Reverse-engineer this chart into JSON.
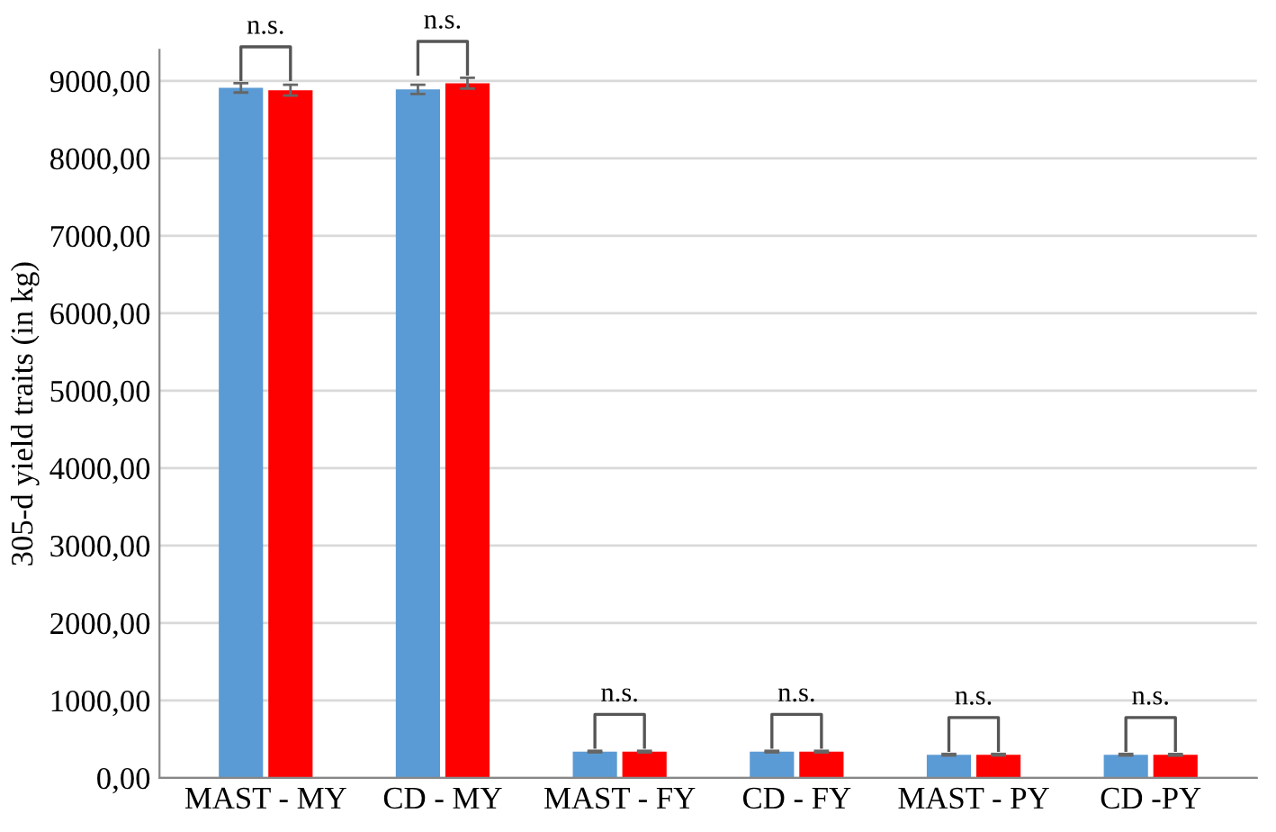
{
  "chart_data": {
    "type": "bar",
    "ylabel": "305-d yield traits (in kg)",
    "categories": [
      "MAST - MY",
      "CD - MY",
      "MAST - FY",
      "CD - FY",
      "MAST - PY",
      "CD -PY"
    ],
    "series": [
      {
        "color": "#5b9bd5",
        "values": [
          8910,
          8890,
          340,
          340,
          300,
          300
        ],
        "errors": [
          60,
          60,
          10,
          10,
          10,
          10
        ]
      },
      {
        "color": "#ff0000",
        "values": [
          8880,
          8970,
          340,
          340,
          300,
          300
        ],
        "errors": [
          70,
          70,
          10,
          10,
          10,
          10
        ]
      }
    ],
    "ylim": [
      0,
      9400
    ],
    "yticks": [
      {
        "value": 0,
        "label": "0,00"
      },
      {
        "value": 1000,
        "label": "1000,00"
      },
      {
        "value": 2000,
        "label": "2000,00"
      },
      {
        "value": 3000,
        "label": "3000,00"
      },
      {
        "value": 4000,
        "label": "4000,00"
      },
      {
        "value": 5000,
        "label": "5000,00"
      },
      {
        "value": 6000,
        "label": "6000,00"
      },
      {
        "value": 7000,
        "label": "7000,00"
      },
      {
        "value": 8000,
        "label": "8000,00"
      },
      {
        "value": 9000,
        "label": "9000,00"
      }
    ],
    "grid": "y",
    "legend": false,
    "annotations": [
      "n.s.",
      "n.s.",
      "n.s.",
      "n.s.",
      "n.s.",
      "n.s."
    ]
  }
}
